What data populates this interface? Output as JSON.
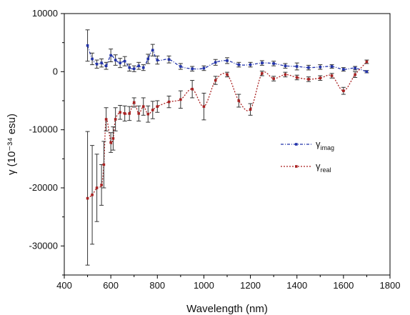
{
  "chart_data": {
    "type": "line",
    "xlabel": "Wavelength (nm)",
    "ylabel": "γ (10⁻³⁴ esu)",
    "xlim": [
      400,
      1800
    ],
    "ylim": [
      -35000,
      10000
    ],
    "xticks": [
      400,
      600,
      800,
      1000,
      1200,
      1400,
      1600,
      1800
    ],
    "yticks": [
      10000,
      0,
      -10000,
      -20000,
      -30000
    ],
    "x_tick_labels": [
      "400",
      "600",
      "800",
      "1000",
      "1200",
      "1400",
      "1600",
      "1800"
    ],
    "y_tick_labels": [
      "10000",
      "0",
      "-10000",
      "-20000",
      "-30000"
    ],
    "legend_position": "center-right",
    "grid": false,
    "series": [
      {
        "name": "γimag",
        "legend_main": "γ",
        "legend_sub": "imag",
        "color": "#2233aa",
        "line_style": "dash-dot",
        "points": [
          {
            "x": 500,
            "y": 4500,
            "err": 2700
          },
          {
            "x": 520,
            "y": 2200,
            "err": 1000
          },
          {
            "x": 540,
            "y": 1300,
            "err": 700
          },
          {
            "x": 560,
            "y": 1500,
            "err": 700
          },
          {
            "x": 580,
            "y": 1000,
            "err": 600
          },
          {
            "x": 600,
            "y": 2800,
            "err": 1100
          },
          {
            "x": 620,
            "y": 2000,
            "err": 900
          },
          {
            "x": 640,
            "y": 1500,
            "err": 800
          },
          {
            "x": 660,
            "y": 1800,
            "err": 800
          },
          {
            "x": 680,
            "y": 700,
            "err": 600
          },
          {
            "x": 700,
            "y": 500,
            "err": 500
          },
          {
            "x": 720,
            "y": 1000,
            "err": 600
          },
          {
            "x": 740,
            "y": 700,
            "err": 500
          },
          {
            "x": 760,
            "y": 2200,
            "err": 800
          },
          {
            "x": 780,
            "y": 3700,
            "err": 1000
          },
          {
            "x": 800,
            "y": 2000,
            "err": 700
          },
          {
            "x": 850,
            "y": 2100,
            "err": 600
          },
          {
            "x": 900,
            "y": 900,
            "err": 500
          },
          {
            "x": 950,
            "y": 500,
            "err": 400
          },
          {
            "x": 1000,
            "y": 600,
            "err": 400
          },
          {
            "x": 1050,
            "y": 1600,
            "err": 500
          },
          {
            "x": 1100,
            "y": 1900,
            "err": 500
          },
          {
            "x": 1150,
            "y": 1200,
            "err": 400
          },
          {
            "x": 1200,
            "y": 1200,
            "err": 400
          },
          {
            "x": 1250,
            "y": 1500,
            "err": 400
          },
          {
            "x": 1300,
            "y": 1400,
            "err": 400
          },
          {
            "x": 1350,
            "y": 1000,
            "err": 400
          },
          {
            "x": 1400,
            "y": 900,
            "err": 600
          },
          {
            "x": 1450,
            "y": 700,
            "err": 400
          },
          {
            "x": 1500,
            "y": 800,
            "err": 400
          },
          {
            "x": 1550,
            "y": 900,
            "err": 300
          },
          {
            "x": 1600,
            "y": 400,
            "err": 300
          },
          {
            "x": 1650,
            "y": 600,
            "err": 300
          },
          {
            "x": 1700,
            "y": 0,
            "err": 200
          }
        ]
      },
      {
        "name": "γreal",
        "legend_main": "γ",
        "legend_sub": "real",
        "color": "#aa2222",
        "line_style": "dotted",
        "points": [
          {
            "x": 500,
            "y": -21800,
            "err": 11500
          },
          {
            "x": 520,
            "y": -21200,
            "err": 8500
          },
          {
            "x": 540,
            "y": -20000,
            "err": 5800
          },
          {
            "x": 560,
            "y": -19500,
            "err": 3500
          },
          {
            "x": 570,
            "y": -16000,
            "err": 4000
          },
          {
            "x": 580,
            "y": -8200,
            "err": 2000
          },
          {
            "x": 600,
            "y": -12200,
            "err": 1700
          },
          {
            "x": 610,
            "y": -11500,
            "err": 2000
          },
          {
            "x": 620,
            "y": -8200,
            "err": 2000
          },
          {
            "x": 640,
            "y": -7000,
            "err": 1200
          },
          {
            "x": 660,
            "y": -7200,
            "err": 1300
          },
          {
            "x": 680,
            "y": -7200,
            "err": 1200
          },
          {
            "x": 700,
            "y": -5300,
            "err": 800
          },
          {
            "x": 720,
            "y": -7200,
            "err": 1300
          },
          {
            "x": 740,
            "y": -6000,
            "err": 1500
          },
          {
            "x": 760,
            "y": -7300,
            "err": 1400
          },
          {
            "x": 780,
            "y": -6600,
            "err": 1500
          },
          {
            "x": 800,
            "y": -6000,
            "err": 1000
          },
          {
            "x": 850,
            "y": -5200,
            "err": 1000
          },
          {
            "x": 900,
            "y": -4800,
            "err": 1500
          },
          {
            "x": 950,
            "y": -3000,
            "err": 1500
          },
          {
            "x": 1000,
            "y": -6000,
            "err": 2300
          },
          {
            "x": 1050,
            "y": -1500,
            "err": 700
          },
          {
            "x": 1100,
            "y": -500,
            "err": 400
          },
          {
            "x": 1150,
            "y": -5000,
            "err": 1100
          },
          {
            "x": 1200,
            "y": -6500,
            "err": 1000
          },
          {
            "x": 1250,
            "y": -300,
            "err": 400
          },
          {
            "x": 1300,
            "y": -1200,
            "err": 400
          },
          {
            "x": 1350,
            "y": -500,
            "err": 400
          },
          {
            "x": 1400,
            "y": -1000,
            "err": 400
          },
          {
            "x": 1450,
            "y": -1300,
            "err": 400
          },
          {
            "x": 1500,
            "y": -1100,
            "err": 400
          },
          {
            "x": 1550,
            "y": -700,
            "err": 400
          },
          {
            "x": 1600,
            "y": -3300,
            "err": 600
          },
          {
            "x": 1650,
            "y": -500,
            "err": 500
          },
          {
            "x": 1700,
            "y": 1700,
            "err": 300
          }
        ]
      }
    ]
  }
}
